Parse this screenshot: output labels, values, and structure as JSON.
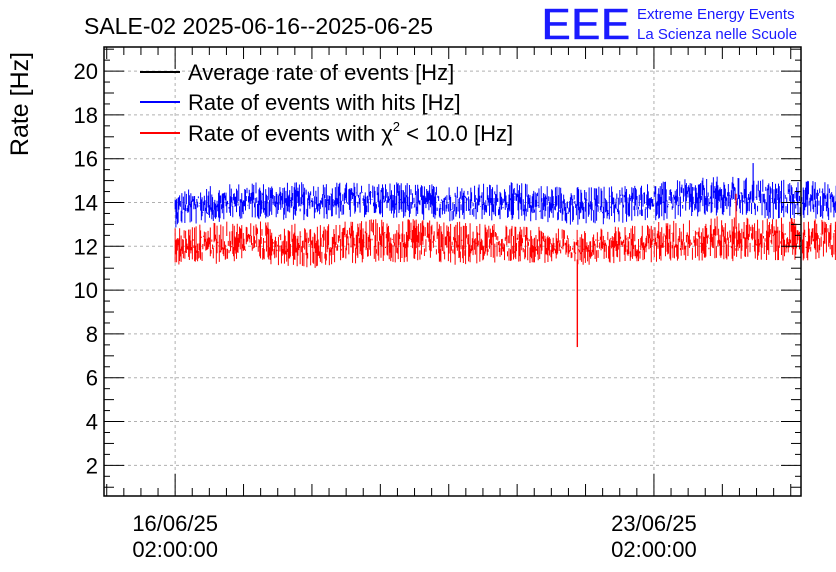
{
  "chart_data": {
    "type": "line",
    "title": "SALE-02 2025-06-16--2025-06-25",
    "ylabel": "Rate [Hz]",
    "xlabel": "",
    "ylim": [
      0.6,
      21.1
    ],
    "y_ticks": [
      2,
      4,
      6,
      8,
      10,
      12,
      14,
      16,
      18,
      20
    ],
    "x_ticks": [
      {
        "date": "16/06/25",
        "time": "02:00:00"
      },
      {
        "date": "23/06/25",
        "time": "02:00:00"
      }
    ],
    "xlim_days": [
      -1.04,
      9.15
    ],
    "grid": true,
    "legend_position": "top-left",
    "series": [
      {
        "name": "Average rate of events [Hz]",
        "color": "#000000",
        "band": [],
        "values": []
      },
      {
        "name": "Rate of events with hits [Hz]",
        "color": "#0000ff",
        "x_days": [
          0,
          1,
          2,
          3,
          4,
          5,
          6,
          7,
          8,
          9.85
        ],
        "band_low": [
          12.6,
          13.0,
          12.9,
          13.1,
          12.8,
          12.9,
          12.6,
          12.9,
          13.0,
          12.9
        ],
        "band_high": [
          14.8,
          15.2,
          15.2,
          15.2,
          15.1,
          15.2,
          15.0,
          15.2,
          15.5,
          15.2
        ],
        "peak_max": 15.8
      },
      {
        "name_prefix": "Rate of events with ",
        "name_symbol": "χ",
        "name_sup": "2",
        "name_suffix": " < 10.0 [Hz]",
        "color": "#ff0000",
        "x_days": [
          0,
          1,
          2,
          3,
          4,
          5,
          6,
          7,
          8,
          9.85
        ],
        "band_low": [
          10.8,
          11.0,
          10.7,
          11.0,
          10.8,
          11.0,
          10.9,
          11.0,
          11.0,
          11.1
        ],
        "band_high": [
          13.2,
          13.5,
          13.3,
          13.6,
          13.5,
          13.2,
          13.0,
          13.4,
          13.7,
          13.5
        ],
        "dip_day": 5.88,
        "dip_value": 7.4,
        "spike_day": 8.2,
        "spike_value": 14.4
      }
    ]
  },
  "logo": {
    "mark": "EEE",
    "line1": "Extreme Energy Events",
    "line2": "La Scienza nelle Scuole",
    "color": "#1a1aff"
  }
}
